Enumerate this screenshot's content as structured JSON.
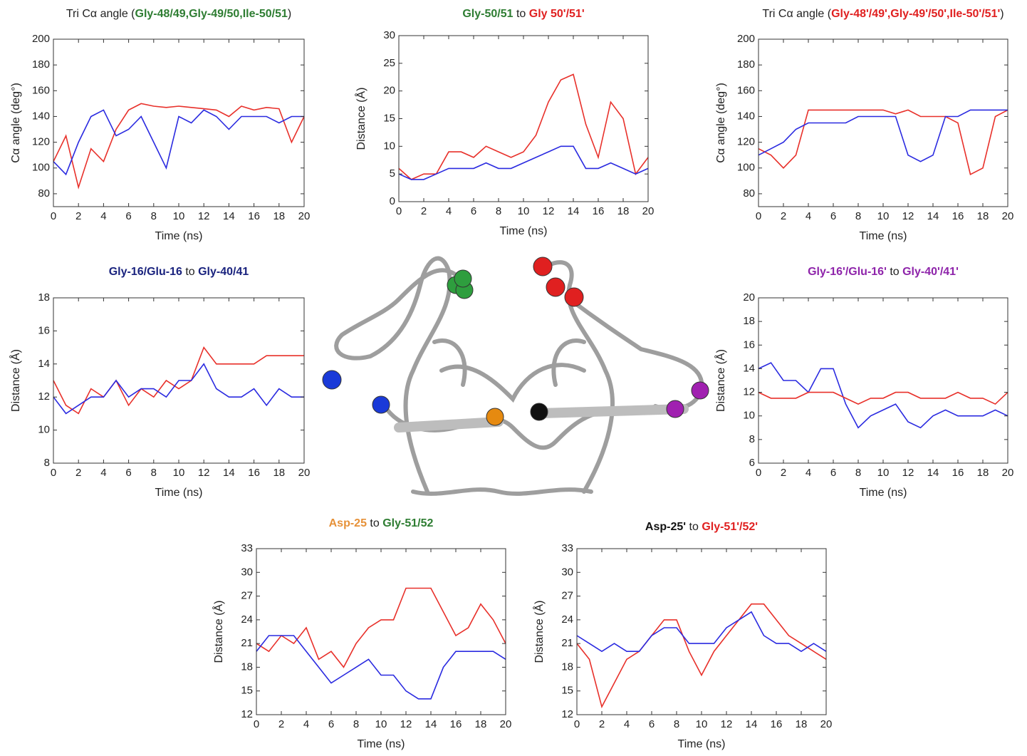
{
  "chart_data": [
    {
      "type": "line",
      "title": [
        {
          "text": "Tri Cα angle ("
        },
        {
          "text": "Gly-48/49,Gly-49/50,Ile-50/51",
          "color": "#2e7d32",
          "bold": true
        },
        {
          "text": ")"
        }
      ],
      "xlabel": "Time (ns)",
      "ylabel": "Cα angle (deg°)",
      "xlim": [
        0,
        20
      ],
      "xticks": [
        0,
        2,
        4,
        6,
        8,
        10,
        12,
        14,
        16,
        18,
        20
      ],
      "ylim": [
        70,
        200
      ],
      "yticks": [
        80,
        100,
        120,
        140,
        160,
        180,
        200
      ],
      "x": [
        0,
        1,
        2,
        3,
        4,
        5,
        6,
        7,
        8,
        9,
        10,
        11,
        12,
        13,
        14,
        15,
        16,
        17,
        18,
        19,
        20
      ],
      "series": [
        {
          "color": "#e8302a",
          "values": [
            105,
            125,
            85,
            115,
            105,
            130,
            145,
            150,
            148,
            147,
            148,
            147,
            146,
            145,
            140,
            148,
            145,
            147,
            146,
            120,
            140
          ]
        },
        {
          "color": "#2a2ae0",
          "values": [
            105,
            95,
            120,
            140,
            145,
            125,
            130,
            140,
            120,
            100,
            140,
            135,
            145,
            140,
            130,
            140,
            140,
            140,
            135,
            140,
            140
          ]
        }
      ]
    },
    {
      "type": "line",
      "title": [
        {
          "text": "Gly-50/51",
          "color": "#2e7d32",
          "bold": true
        },
        {
          "text": " to "
        },
        {
          "text": "Gly 50'/51'",
          "color": "#e02020",
          "bold": true
        }
      ],
      "xlabel": "Time (ns)",
      "ylabel": "Distance (Å)",
      "xlim": [
        0,
        20
      ],
      "xticks": [
        0,
        2,
        4,
        6,
        8,
        10,
        12,
        14,
        16,
        18,
        20
      ],
      "ylim": [
        0,
        30
      ],
      "yticks": [
        0,
        5,
        10,
        15,
        20,
        25,
        30
      ],
      "x": [
        0,
        1,
        2,
        3,
        4,
        5,
        6,
        7,
        8,
        9,
        10,
        11,
        12,
        13,
        14,
        15,
        16,
        17,
        18,
        19,
        20
      ],
      "series": [
        {
          "color": "#e8302a",
          "values": [
            6,
            4,
            5,
            5,
            9,
            9,
            8,
            10,
            9,
            8,
            9,
            12,
            18,
            22,
            23,
            14,
            8,
            18,
            15,
            5,
            8
          ]
        },
        {
          "color": "#2a2ae0",
          "values": [
            5,
            4,
            4,
            5,
            6,
            6,
            6,
            7,
            6,
            6,
            7,
            8,
            9,
            10,
            10,
            6,
            6,
            7,
            6,
            5,
            6
          ]
        }
      ]
    },
    {
      "type": "line",
      "title": [
        {
          "text": "Tri Cα angle ("
        },
        {
          "text": "Gly-48'/49',Gly-49'/50',Ile-50'/51'",
          "color": "#e02020",
          "bold": true
        },
        {
          "text": ")"
        }
      ],
      "xlabel": "Time (ns)",
      "ylabel": "Cα angle (deg°)",
      "xlim": [
        0,
        20
      ],
      "xticks": [
        0,
        2,
        4,
        6,
        8,
        10,
        12,
        14,
        16,
        18,
        20
      ],
      "ylim": [
        70,
        200
      ],
      "yticks": [
        80,
        100,
        120,
        140,
        160,
        180,
        200
      ],
      "x": [
        0,
        1,
        2,
        3,
        4,
        5,
        6,
        7,
        8,
        9,
        10,
        11,
        12,
        13,
        14,
        15,
        16,
        17,
        18,
        19,
        20
      ],
      "series": [
        {
          "color": "#e8302a",
          "values": [
            115,
            110,
            100,
            110,
            145,
            145,
            145,
            145,
            145,
            145,
            145,
            142,
            145,
            140,
            140,
            140,
            135,
            95,
            100,
            140,
            145
          ]
        },
        {
          "color": "#2a2ae0",
          "values": [
            110,
            115,
            120,
            130,
            135,
            135,
            135,
            135,
            140,
            140,
            140,
            140,
            110,
            105,
            110,
            140,
            140,
            145,
            145,
            145,
            145
          ]
        }
      ]
    },
    {
      "type": "line",
      "title": [
        {
          "text": "Gly-16/Glu-16",
          "color": "#1a237e",
          "bold": true
        },
        {
          "text": " to "
        },
        {
          "text": "Gly-40/41",
          "color": "#1a237e",
          "bold": true
        }
      ],
      "xlabel": "Time (ns)",
      "ylabel": "Distance (Å)",
      "xlim": [
        0,
        20
      ],
      "xticks": [
        0,
        2,
        4,
        6,
        8,
        10,
        12,
        14,
        16,
        18,
        20
      ],
      "ylim": [
        8,
        18
      ],
      "yticks": [
        8,
        10,
        12,
        14,
        16,
        18
      ],
      "x": [
        0,
        1,
        2,
        3,
        4,
        5,
        6,
        7,
        8,
        9,
        10,
        11,
        12,
        13,
        14,
        15,
        16,
        17,
        18,
        19,
        20
      ],
      "series": [
        {
          "color": "#e8302a",
          "values": [
            13,
            11.5,
            11,
            12.5,
            12,
            13,
            11.5,
            12.5,
            12,
            13,
            12.5,
            13,
            15,
            14,
            14,
            14,
            14,
            14.5,
            14.5,
            14.5,
            14.5
          ]
        },
        {
          "color": "#2a2ae0",
          "values": [
            12,
            11,
            11.5,
            12,
            12,
            13,
            12,
            12.5,
            12.5,
            12,
            13,
            13,
            14,
            12.5,
            12,
            12,
            12.5,
            11.5,
            12.5,
            12,
            12
          ]
        }
      ]
    },
    {
      "type": "line",
      "title": [
        {
          "text": "Gly-16'/Glu-16'",
          "color": "#8e24aa",
          "bold": true
        },
        {
          "text": " to "
        },
        {
          "text": "Gly-40'/41'",
          "color": "#8e24aa",
          "bold": true
        }
      ],
      "xlabel": "Time (ns)",
      "ylabel": "Distance (Å)",
      "xlim": [
        0,
        20
      ],
      "xticks": [
        0,
        2,
        4,
        6,
        8,
        10,
        12,
        14,
        16,
        18,
        20
      ],
      "ylim": [
        6,
        20
      ],
      "yticks": [
        6,
        8,
        10,
        12,
        14,
        16,
        18,
        20
      ],
      "x": [
        0,
        1,
        2,
        3,
        4,
        5,
        6,
        7,
        8,
        9,
        10,
        11,
        12,
        13,
        14,
        15,
        16,
        17,
        18,
        19,
        20
      ],
      "series": [
        {
          "color": "#2a2ae0",
          "values": [
            14,
            14.5,
            13,
            13,
            12,
            14,
            14,
            11,
            9,
            10,
            10.5,
            11,
            9.5,
            9,
            10,
            10.5,
            10,
            10,
            10,
            10.5,
            10
          ]
        },
        {
          "color": "#e8302a",
          "values": [
            12,
            11.5,
            11.5,
            11.5,
            12,
            12,
            12,
            11.5,
            11,
            11.5,
            11.5,
            12,
            12,
            11.5,
            11.5,
            11.5,
            12,
            11.5,
            11.5,
            11,
            12
          ]
        }
      ]
    },
    {
      "type": "line",
      "title": [
        {
          "text": "Asp-25",
          "color": "#e69138",
          "bold": true
        },
        {
          "text": " to "
        },
        {
          "text": "Gly-51/52",
          "color": "#2e7d32",
          "bold": true
        }
      ],
      "xlabel": "Time (ns)",
      "ylabel": "Distance (Å)",
      "xlim": [
        0,
        20
      ],
      "xticks": [
        0,
        2,
        4,
        6,
        8,
        10,
        12,
        14,
        16,
        18,
        20
      ],
      "ylim": [
        12,
        33
      ],
      "yticks": [
        12,
        15,
        18,
        21,
        24,
        27,
        30,
        33
      ],
      "x": [
        0,
        1,
        2,
        3,
        4,
        5,
        6,
        7,
        8,
        9,
        10,
        11,
        12,
        13,
        14,
        15,
        16,
        17,
        18,
        19,
        20
      ],
      "series": [
        {
          "color": "#e8302a",
          "values": [
            21,
            20,
            22,
            21,
            23,
            19,
            20,
            18,
            21,
            23,
            24,
            24,
            28,
            28,
            28,
            25,
            22,
            23,
            26,
            24,
            21
          ]
        },
        {
          "color": "#2a2ae0",
          "values": [
            20,
            22,
            22,
            22,
            20,
            18,
            16,
            17,
            18,
            19,
            17,
            17,
            15,
            14,
            14,
            18,
            20,
            20,
            20,
            20,
            19
          ]
        }
      ]
    },
    {
      "type": "line",
      "title": [
        {
          "text": "Asp-25'",
          "color": "#111111",
          "bold": true
        },
        {
          "text": " to "
        },
        {
          "text": "Gly-51'/52'",
          "color": "#e02020",
          "bold": true
        }
      ],
      "xlabel": "Time (ns)",
      "ylabel": "Distance (Å)",
      "xlim": [
        0,
        20
      ],
      "xticks": [
        0,
        2,
        4,
        6,
        8,
        10,
        12,
        14,
        16,
        18,
        20
      ],
      "ylim": [
        12,
        33
      ],
      "yticks": [
        12,
        15,
        18,
        21,
        24,
        27,
        30,
        33
      ],
      "x": [
        0,
        1,
        2,
        3,
        4,
        5,
        6,
        7,
        8,
        9,
        10,
        11,
        12,
        13,
        14,
        15,
        16,
        17,
        18,
        19,
        20
      ],
      "series": [
        {
          "color": "#e8302a",
          "values": [
            21,
            19,
            13,
            16,
            19,
            20,
            22,
            24,
            24,
            20,
            17,
            20,
            22,
            24,
            26,
            26,
            24,
            22,
            21,
            20,
            19
          ]
        },
        {
          "color": "#2a2ae0",
          "values": [
            22,
            21,
            20,
            21,
            20,
            20,
            22,
            23,
            23,
            21,
            21,
            21,
            23,
            24,
            25,
            22,
            21,
            21,
            20,
            21,
            20
          ]
        }
      ]
    }
  ]
}
